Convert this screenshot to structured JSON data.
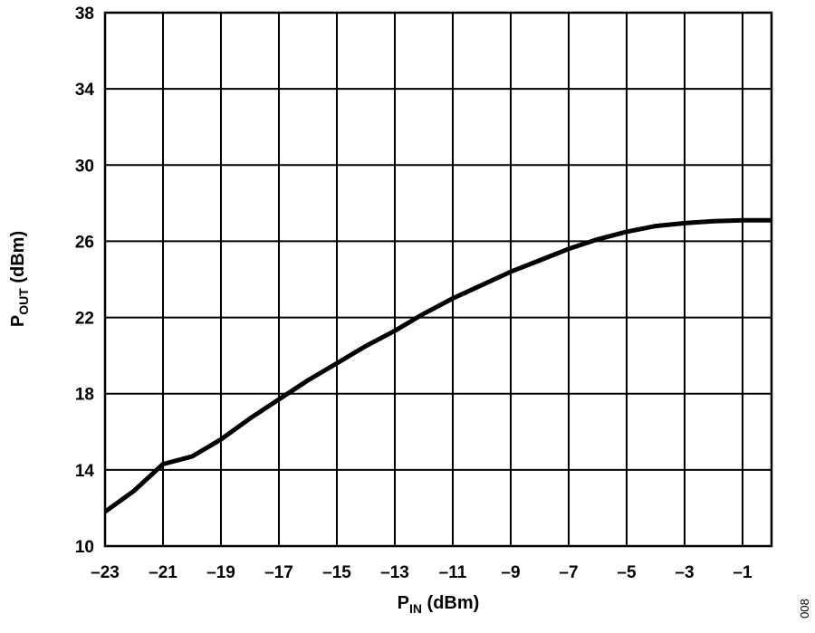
{
  "chart_data": {
    "type": "line",
    "xlabel": "P",
    "xlabel_sub": "IN",
    "xlabel_unit": " (dBm)",
    "ylabel": "P",
    "ylabel_sub": "OUT",
    "ylabel_unit": " (dBm)",
    "xlim": [
      -23,
      0
    ],
    "ylim": [
      10,
      38
    ],
    "xticks": [
      -23,
      -21,
      -19,
      -17,
      -15,
      -13,
      -11,
      -9,
      -7,
      -5,
      -3,
      -1
    ],
    "yticks": [
      10,
      14,
      18,
      22,
      26,
      30,
      34,
      38
    ],
    "grid": true,
    "figure_id": "008",
    "line_color": "#000000",
    "series": [
      {
        "x": [
          -23,
          -22,
          -21,
          -20,
          -19,
          -18,
          -17,
          -16,
          -15,
          -14,
          -13,
          -12,
          -11,
          -10,
          -9,
          -8,
          -7,
          -6,
          -5,
          -4,
          -3,
          -2,
          -1,
          0
        ],
        "y": [
          11.8,
          12.9,
          14.3,
          14.7,
          15.6,
          16.7,
          17.7,
          18.7,
          19.6,
          20.5,
          21.3,
          22.2,
          23.0,
          23.7,
          24.4,
          25.0,
          25.6,
          26.1,
          26.5,
          26.8,
          26.95,
          27.05,
          27.1,
          27.1
        ]
      }
    ]
  }
}
